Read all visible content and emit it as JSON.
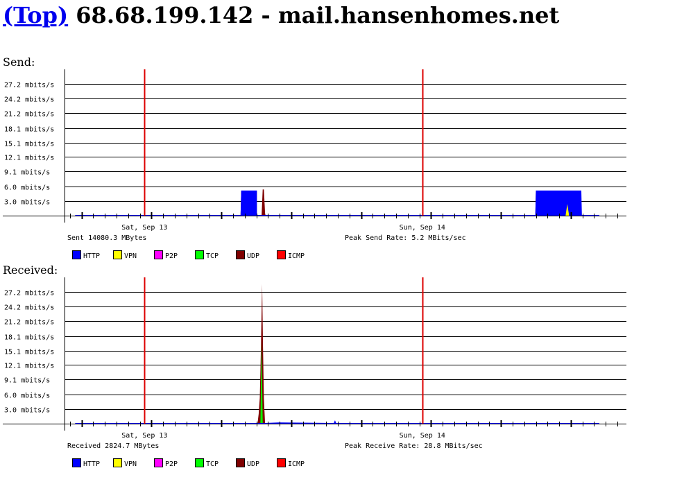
{
  "header": {
    "link_text": "(Top)",
    "title_text": "68.68.199.142 - mail.hansenhomes.net"
  },
  "colors": {
    "grid": "#000000",
    "day_marker": "#dd0000",
    "HTTP": "#0000ff",
    "VPN": "#ffff00",
    "P2P": "#ff00ff",
    "TCP": "#00ff00",
    "UDP": "#7f0000",
    "ICMP": "#ff0000"
  },
  "legend": [
    "HTTP",
    "VPN",
    "P2P",
    "TCP",
    "UDP",
    "ICMP"
  ],
  "chart_data": [
    {
      "type": "area",
      "title": "Send:",
      "yunit": "mbits/s",
      "ytick_labels": [
        "27.2 mbits/s",
        "24.2 mbits/s",
        "21.2 mbits/s",
        "18.1 mbits/s",
        "15.1 mbits/s",
        "12.1 mbits/s",
        "9.1 mbits/s",
        "6.0 mbits/s",
        "3.0 mbits/s"
      ],
      "ytick_values": [
        27.2,
        24.2,
        21.2,
        18.1,
        15.1,
        12.1,
        9.1,
        6.0,
        3.0
      ],
      "ylim": [
        0,
        30.2
      ],
      "xlim": [
        0,
        48
      ],
      "day_markers": [
        {
          "x": 6.45,
          "label": "Sat, Sep 13"
        },
        {
          "x": 30.3,
          "label": "Sun, Sep 14"
        }
      ],
      "total_text": "Sent 14080.3 MBytes",
      "peak_text": "Peak Send Rate: 5.2 MBits/sec",
      "series": [
        {
          "name": "UDP",
          "x": [
            14.7,
            14.75,
            15.1,
            15.3,
            15.5,
            15.7,
            15.9,
            16.1,
            16.1,
            16.5,
            16.6,
            16.7,
            16.8,
            16.85,
            40.0,
            40.05,
            42.7,
            42.75,
            42.9,
            43.0,
            43.1,
            43.15,
            43.9,
            43.95
          ],
          "y": [
            0,
            5.1,
            5.1,
            3.3,
            5.1,
            4.6,
            5.1,
            5.1,
            0,
            0,
            5.4,
            5.4,
            0.5,
            0,
            0,
            5.0,
            5.0,
            2.5,
            5.0,
            5.0,
            5.0,
            5.0,
            5.0,
            0
          ]
        },
        {
          "name": "HTTP",
          "x": [
            0.5,
            14.7,
            14.75,
            16.1,
            16.1,
            40.0,
            40.05,
            43.95,
            44.0,
            45.5
          ],
          "y": [
            0.15,
            0.15,
            5.2,
            5.2,
            0.15,
            0.15,
            5.2,
            5.2,
            0.15,
            0.15
          ]
        },
        {
          "name": "VPN",
          "x": [
            42.6,
            42.75,
            42.9
          ],
          "y": [
            0,
            2.4,
            0
          ]
        }
      ]
    },
    {
      "type": "area",
      "title": "Received:",
      "yunit": "mbits/s",
      "ytick_labels": [
        "27.2 mbits/s",
        "24.2 mbits/s",
        "21.2 mbits/s",
        "18.1 mbits/s",
        "15.1 mbits/s",
        "12.1 mbits/s",
        "9.1 mbits/s",
        "6.0 mbits/s",
        "3.0 mbits/s"
      ],
      "ytick_values": [
        27.2,
        24.2,
        21.2,
        18.1,
        15.1,
        12.1,
        9.1,
        6.0,
        3.0
      ],
      "ylim": [
        0,
        30.2
      ],
      "xlim": [
        0,
        48
      ],
      "day_markers": [
        {
          "x": 6.45,
          "label": "Sat, Sep 13"
        },
        {
          "x": 30.3,
          "label": "Sun, Sep 14"
        }
      ],
      "total_text": "Received 2824.7 MBytes",
      "peak_text": "Peak Receive Rate: 28.8 MBits/sec",
      "series": [
        {
          "name": "UDP",
          "x": [
            16.15,
            16.25,
            16.35,
            16.45,
            16.55,
            16.62,
            16.7,
            16.8
          ],
          "y": [
            0,
            2.0,
            5.3,
            16.0,
            28.8,
            16.0,
            5.2,
            0
          ]
        },
        {
          "name": "TCP",
          "x": [
            16.4,
            16.5,
            16.6
          ],
          "y": [
            0,
            17.0,
            0
          ]
        },
        {
          "name": "HTTP",
          "x": [
            0.5,
            16.1,
            16.8,
            18.0,
            22.7,
            22.8,
            22.9,
            45.5
          ],
          "y": [
            0.15,
            0.15,
            0.15,
            0.25,
            0.15,
            0.7,
            0.15,
            0.15
          ]
        }
      ]
    }
  ]
}
